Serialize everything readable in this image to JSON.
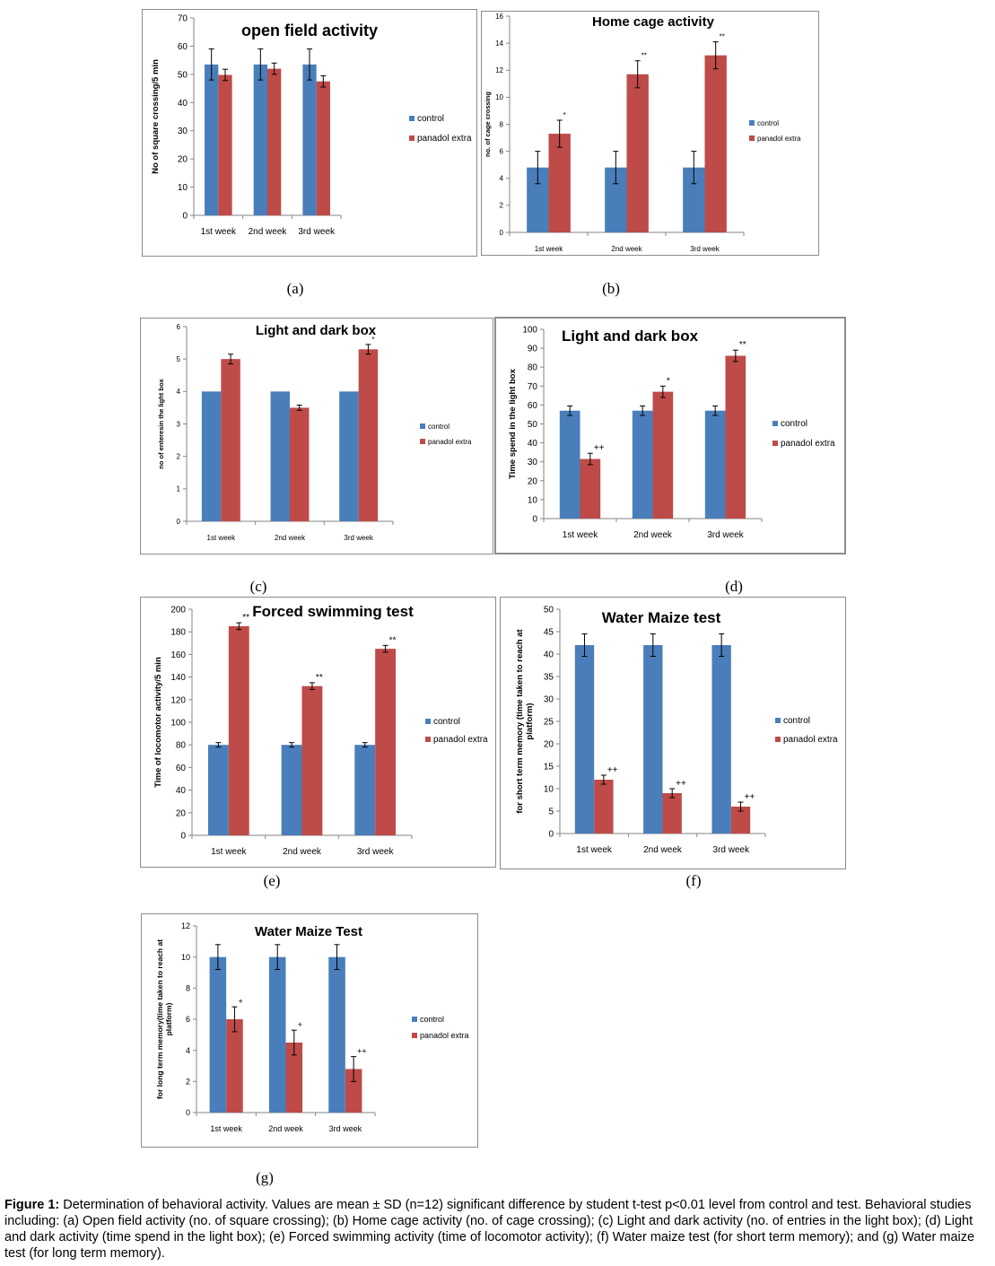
{
  "colors": {
    "control": "#4a7ebb",
    "panadol": "#be4b48",
    "frame": "#8c8c8c",
    "axis": "#868686"
  },
  "chart_data": [
    {
      "id": "a",
      "type": "bar",
      "title": "open field activity",
      "ylabel": "No of square crossing/5 min",
      "xlabel": "",
      "ylim": [
        0,
        70
      ],
      "yticks": [
        0,
        10,
        20,
        30,
        40,
        50,
        60,
        70
      ],
      "categories": [
        "1st week",
        "2nd week",
        "3rd week"
      ],
      "series": [
        {
          "name": "control",
          "values": [
            53.5,
            53.5,
            53.5
          ],
          "errors": [
            5.5,
            5.5,
            5.5
          ],
          "marks": [
            "",
            "",
            ""
          ]
        },
        {
          "name": "panadol extra",
          "values": [
            49.8,
            52,
            47.5
          ],
          "errors": [
            2.0,
            2.0,
            2.0
          ],
          "marks": [
            "",
            "",
            ""
          ]
        }
      ],
      "legend": "right",
      "grid": false
    },
    {
      "id": "b",
      "type": "bar",
      "title": "Home cage activity",
      "ylabel": "no. of cage crossing",
      "xlabel": "",
      "ylim": [
        0,
        16
      ],
      "yticks": [
        0,
        2,
        4,
        6,
        8,
        10,
        12,
        14,
        16
      ],
      "categories": [
        "1st week",
        "2nd week",
        "3rd week"
      ],
      "series": [
        {
          "name": "control",
          "values": [
            4.8,
            4.8,
            4.8
          ],
          "errors": [
            1.2,
            1.2,
            1.2
          ],
          "marks": [
            "",
            "",
            ""
          ]
        },
        {
          "name": "panadol extra",
          "values": [
            7.3,
            11.7,
            13.1
          ],
          "errors": [
            1.0,
            1.0,
            1.0
          ],
          "marks": [
            "*",
            "**",
            "**"
          ]
        }
      ],
      "legend": "right",
      "grid": false
    },
    {
      "id": "c",
      "type": "bar",
      "title": "Light and dark box",
      "ylabel": "no of enteresin the light box",
      "xlabel": "",
      "ylim": [
        0,
        6
      ],
      "yticks": [
        0,
        1,
        2,
        3,
        4,
        5,
        6
      ],
      "categories": [
        "1st week",
        "2nd week",
        "3rd week"
      ],
      "series": [
        {
          "name": "control",
          "values": [
            4,
            4,
            4
          ],
          "errors": [
            0,
            0,
            0
          ],
          "marks": [
            "",
            "",
            ""
          ]
        },
        {
          "name": "panadol extra",
          "values": [
            5,
            3.5,
            5.3
          ],
          "errors": [
            0.15,
            0.08,
            0.15
          ],
          "marks": [
            "",
            "",
            "*"
          ]
        }
      ],
      "legend": "right",
      "grid": false
    },
    {
      "id": "d",
      "type": "bar",
      "title": "Light and dark box",
      "ylabel": "Time spend in the light box",
      "xlabel": "",
      "ylim": [
        0,
        100
      ],
      "yticks": [
        0,
        10,
        20,
        30,
        40,
        50,
        60,
        70,
        80,
        90,
        100
      ],
      "categories": [
        "1st week",
        "2nd week",
        "3rd week"
      ],
      "series": [
        {
          "name": "control",
          "values": [
            57,
            57,
            57
          ],
          "errors": [
            2.5,
            2.5,
            2.5
          ],
          "marks": [
            "",
            "",
            ""
          ]
        },
        {
          "name": "panadol extra",
          "values": [
            31.5,
            67,
            86
          ],
          "errors": [
            3,
            3,
            3
          ],
          "marks": [
            "++",
            "*",
            "**"
          ]
        }
      ],
      "legend": "right",
      "grid": false
    },
    {
      "id": "e",
      "type": "bar",
      "title": "Forced swimming test",
      "ylabel": "Time of locomotor activity/5 min",
      "xlabel": "",
      "ylim": [
        0,
        200
      ],
      "yticks": [
        0,
        20,
        40,
        60,
        80,
        100,
        120,
        140,
        160,
        180,
        200
      ],
      "categories": [
        "1st week",
        "2nd week",
        "3rd week"
      ],
      "series": [
        {
          "name": "control",
          "values": [
            80,
            80,
            80
          ],
          "errors": [
            2,
            2,
            2
          ],
          "marks": [
            "",
            "",
            ""
          ]
        },
        {
          "name": "panadol extra",
          "values": [
            185,
            132,
            165
          ],
          "errors": [
            3,
            3,
            3
          ],
          "marks": [
            "**",
            "**",
            "**"
          ]
        }
      ],
      "legend": "right",
      "grid": false
    },
    {
      "id": "f",
      "type": "bar",
      "title": "Water Maize test",
      "ylabel": "for short term memory (time taken to reach at platform)",
      "xlabel": "",
      "ylim": [
        0,
        50
      ],
      "yticks": [
        0,
        5,
        10,
        15,
        20,
        25,
        30,
        35,
        40,
        45,
        50
      ],
      "categories": [
        "1st week",
        "2nd week",
        "3rd week"
      ],
      "series": [
        {
          "name": "control",
          "values": [
            42,
            42,
            42
          ],
          "errors": [
            2.5,
            2.5,
            2.5
          ],
          "marks": [
            "",
            "",
            ""
          ]
        },
        {
          "name": "panadol extra",
          "values": [
            12,
            9,
            6
          ],
          "errors": [
            1,
            1,
            1
          ],
          "marks": [
            "++",
            "++",
            "++"
          ]
        }
      ],
      "legend": "right",
      "grid": false
    },
    {
      "id": "g",
      "type": "bar",
      "title": "Water Maize Test",
      "ylabel": "for long term memory(time taken to reach at platform)",
      "xlabel": "",
      "ylim": [
        0,
        12
      ],
      "yticks": [
        0,
        2,
        4,
        6,
        8,
        10,
        12
      ],
      "categories": [
        "1st week",
        "2nd week",
        "3rd week"
      ],
      "series": [
        {
          "name": "control",
          "values": [
            10,
            10,
            10
          ],
          "errors": [
            0.8,
            0.8,
            0.8
          ],
          "marks": [
            "",
            "",
            ""
          ]
        },
        {
          "name": "panadol extra",
          "values": [
            6,
            4.5,
            2.8
          ],
          "errors": [
            0.8,
            0.8,
            0.8
          ],
          "marks": [
            "+",
            "+",
            "++"
          ]
        }
      ],
      "legend": "right",
      "grid": false
    }
  ],
  "sublabels": [
    "(a)",
    "(b)",
    "(c)",
    "(d)",
    "(e)",
    "(f)",
    "(g)"
  ],
  "caption": {
    "label": "Figure 1:",
    "text": " Determination of behavioral activity. Values are mean ± SD (n=12) significant difference by student t-test p<0.01 level from control and test. Behavioral studies including: (a) Open field activity (no. of square crossing); (b) Home cage activity (no. of cage crossing); (c) Light and dark activity (no. of entries in the light box); (d) Light and dark activity (time spend in the light box); (e) Forced swimming activity (time of locomotor activity); (f) Water maize test (for short term memory); and (g) Water maize test (for long term memory)."
  }
}
